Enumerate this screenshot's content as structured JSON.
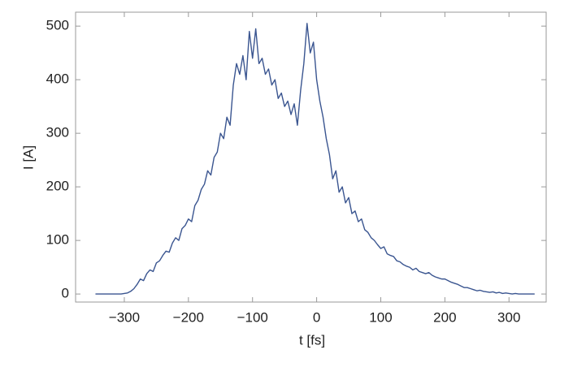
{
  "chart_data": {
    "type": "line",
    "xlabel": "t [fs]",
    "ylabel": "I [A]",
    "x": [
      -345,
      -340,
      -335,
      -330,
      -325,
      -320,
      -315,
      -310,
      -305,
      -300,
      -295,
      -290,
      -285,
      -280,
      -275,
      -270,
      -265,
      -260,
      -255,
      -250,
      -245,
      -240,
      -235,
      -230,
      -225,
      -220,
      -215,
      -210,
      -205,
      -200,
      -195,
      -190,
      -185,
      -180,
      -175,
      -170,
      -165,
      -160,
      -155,
      -150,
      -145,
      -140,
      -135,
      -130,
      -125,
      -120,
      -115,
      -110,
      -105,
      -100,
      -95,
      -90,
      -85,
      -80,
      -75,
      -70,
      -65,
      -60,
      -55,
      -50,
      -45,
      -40,
      -35,
      -30,
      -25,
      -20,
      -15,
      -10,
      -5,
      0,
      5,
      10,
      15,
      20,
      25,
      30,
      35,
      40,
      45,
      50,
      55,
      60,
      65,
      70,
      75,
      80,
      85,
      90,
      95,
      100,
      105,
      110,
      115,
      120,
      125,
      130,
      135,
      140,
      145,
      150,
      155,
      160,
      165,
      170,
      175,
      180,
      185,
      190,
      195,
      200,
      205,
      210,
      215,
      220,
      225,
      230,
      235,
      240,
      245,
      250,
      255,
      260,
      265,
      270,
      275,
      280,
      285,
      290,
      295,
      300,
      305,
      310,
      315,
      320,
      325,
      330,
      335,
      340
    ],
    "series": [
      {
        "color": "#3a5590",
        "values": [
          0,
          0,
          0,
          0,
          0,
          0,
          0,
          0,
          0,
          1,
          2,
          5,
          10,
          18,
          28,
          25,
          38,
          45,
          42,
          58,
          62,
          72,
          80,
          78,
          95,
          105,
          100,
          122,
          128,
          140,
          135,
          165,
          175,
          195,
          205,
          230,
          222,
          255,
          265,
          300,
          290,
          330,
          315,
          390,
          430,
          410,
          445,
          400,
          490,
          440,
          495,
          430,
          440,
          410,
          420,
          390,
          400,
          365,
          375,
          350,
          360,
          335,
          355,
          315,
          380,
          430,
          505,
          450,
          470,
          400,
          360,
          330,
          290,
          260,
          215,
          230,
          190,
          200,
          170,
          180,
          150,
          155,
          135,
          140,
          120,
          115,
          105,
          100,
          92,
          85,
          88,
          75,
          72,
          70,
          62,
          60,
          55,
          52,
          50,
          45,
          48,
          42,
          40,
          38,
          40,
          35,
          32,
          30,
          28,
          28,
          25,
          22,
          20,
          18,
          15,
          12,
          12,
          10,
          8,
          6,
          7,
          5,
          4,
          3,
          4,
          2,
          3,
          1,
          2,
          1,
          0,
          1,
          0,
          0,
          0,
          0,
          0,
          0
        ]
      }
    ],
    "xlim": [
      -376,
      358
    ],
    "ylim": [
      -15,
      526
    ],
    "xticks": [
      {
        "value": -300,
        "label": "−300"
      },
      {
        "value": -200,
        "label": "−200"
      },
      {
        "value": -100,
        "label": "−100"
      },
      0,
      100,
      200,
      300
    ],
    "yticks": [
      0,
      100,
      200,
      300,
      400,
      500
    ]
  }
}
